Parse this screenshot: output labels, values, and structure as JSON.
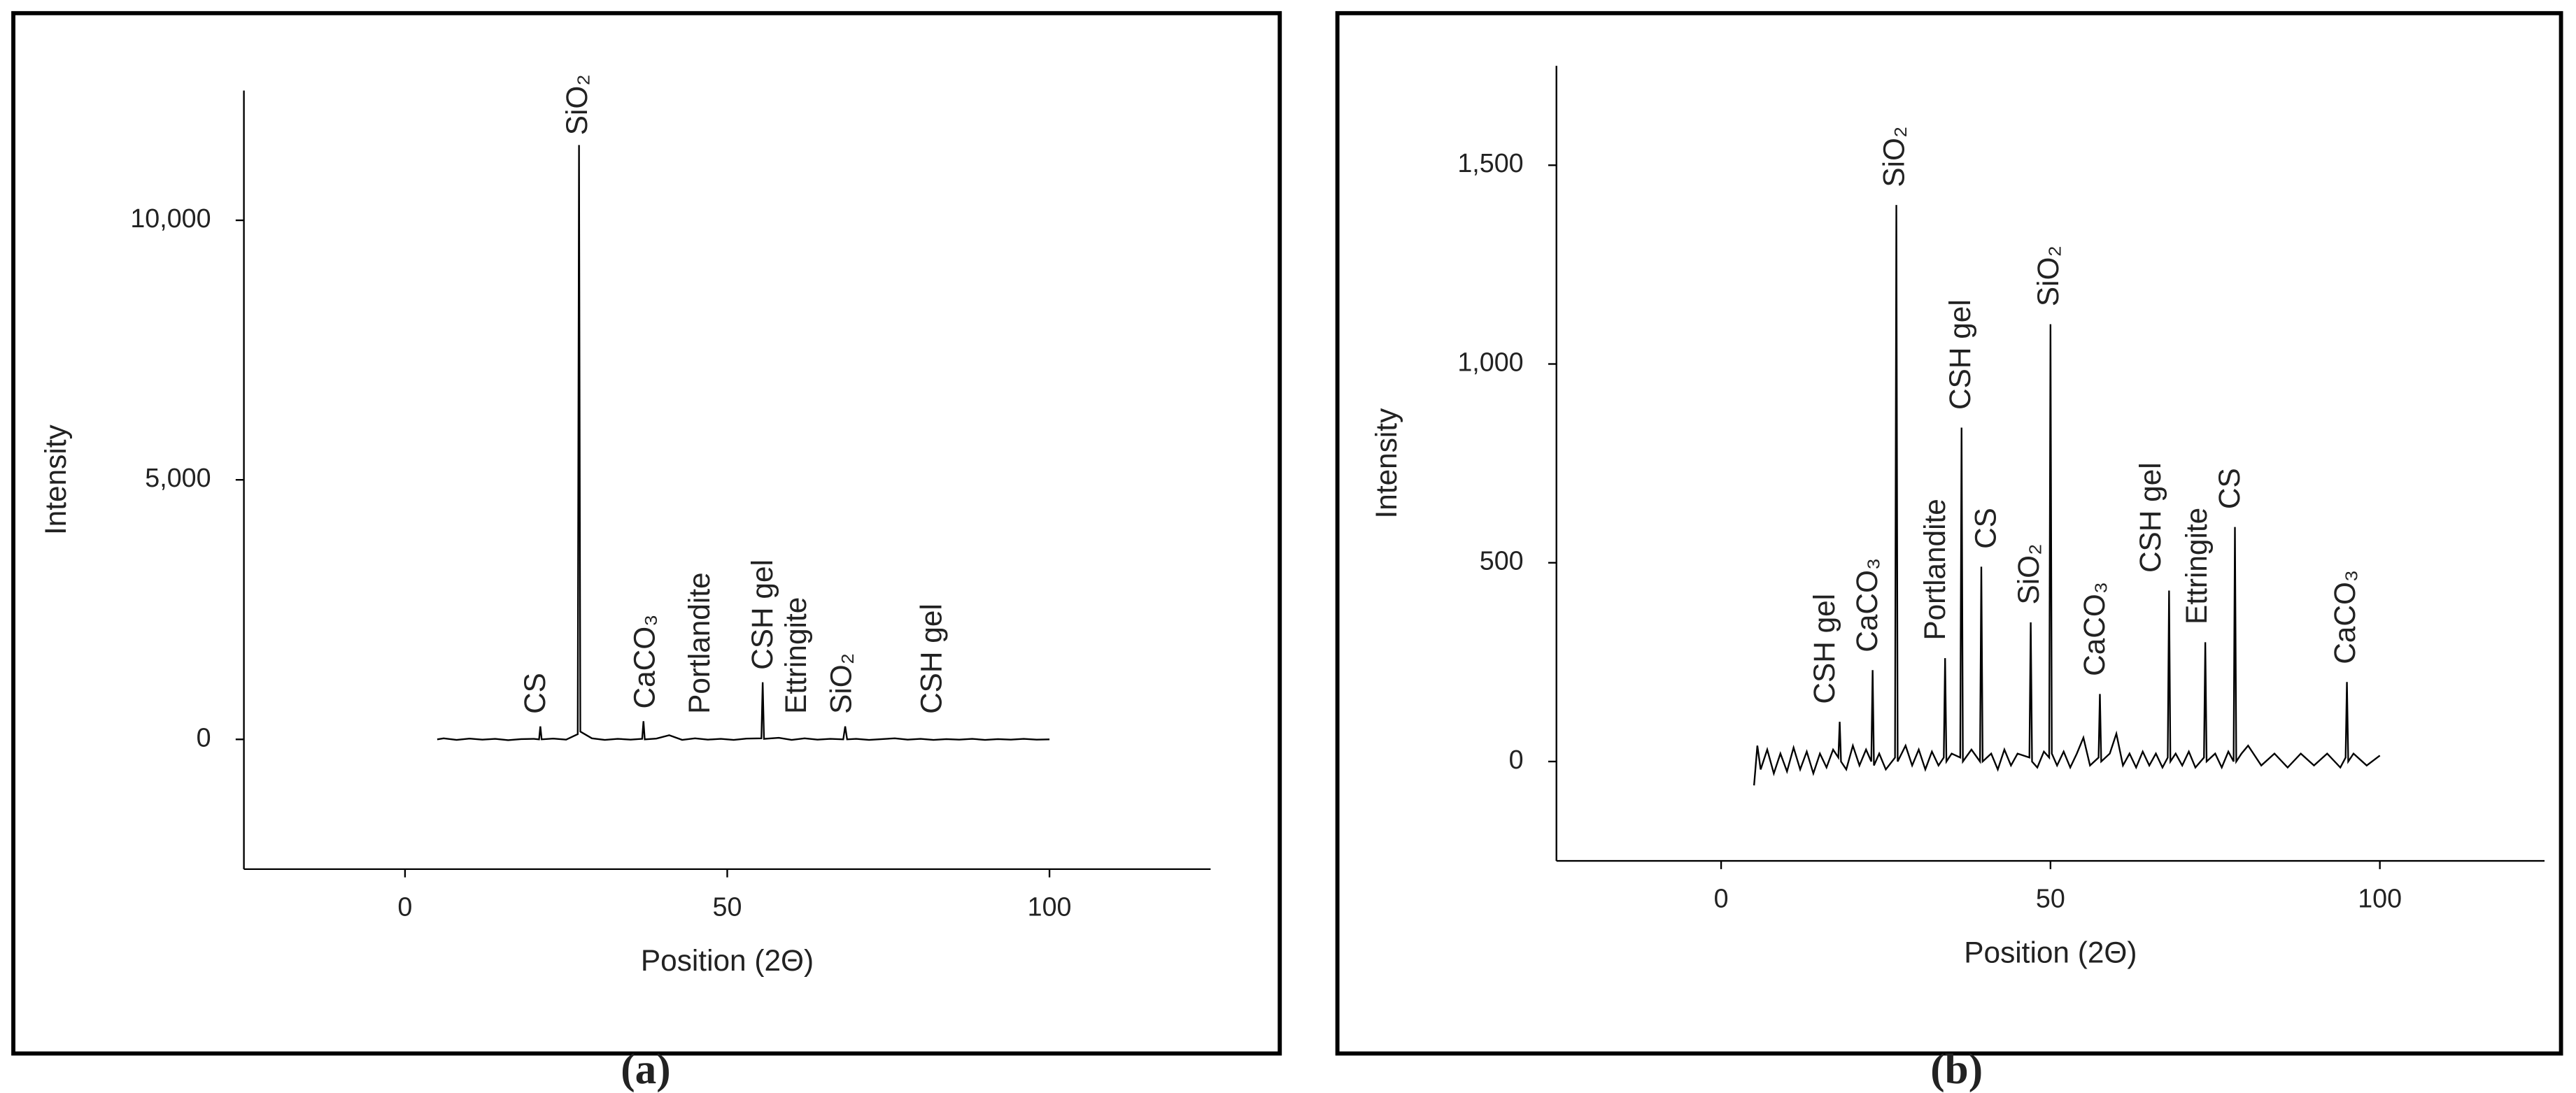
{
  "chart_data": [
    {
      "type": "line",
      "caption": "(a)",
      "x_label": "Position (2Θ)",
      "y_label": "Intensity",
      "color": "#000000",
      "xlim": [
        -25,
        125
      ],
      "xticks": [
        0,
        50,
        100
      ],
      "ylim": [
        -2500,
        12500
      ],
      "yticks": [
        0,
        {
          "value": 5000,
          "label": "5,000"
        },
        {
          "value": 10000,
          "label": "10,000"
        }
      ],
      "x": [
        5,
        6,
        8,
        10,
        12,
        14,
        16,
        18,
        20,
        20.8,
        21,
        21.2,
        23,
        25,
        26.8,
        27,
        27.2,
        29,
        31,
        33,
        35,
        36.8,
        37,
        37.2,
        39,
        41,
        43,
        45,
        47,
        49,
        51,
        53,
        55.3,
        55.5,
        55.7,
        58,
        60,
        62,
        64,
        66,
        68,
        68.3,
        68.6,
        70,
        72,
        74,
        76,
        78,
        80,
        82,
        84,
        86,
        88,
        90,
        92,
        94,
        96,
        98,
        100
      ],
      "values": [
        0,
        20,
        -10,
        15,
        -5,
        10,
        -15,
        5,
        10,
        0,
        250,
        0,
        15,
        -5,
        100,
        11450,
        150,
        20,
        -10,
        10,
        -5,
        10,
        350,
        0,
        15,
        80,
        -10,
        20,
        -5,
        10,
        -10,
        15,
        20,
        1100,
        10,
        30,
        -10,
        20,
        -5,
        10,
        0,
        250,
        0,
        10,
        -10,
        5,
        20,
        -5,
        10,
        -10,
        5,
        -5,
        10,
        -10,
        5,
        -5,
        10,
        -5,
        0
      ],
      "annotations": [
        {
          "text": "SiO₂",
          "x": 27,
          "y": 11450
        },
        {
          "text": "CS",
          "x": 20.5,
          "y": 300
        },
        {
          "text": "CaCO₃",
          "x": 37.5,
          "y": 400
        },
        {
          "text": "Portlandite",
          "x": 46,
          "y": 300
        },
        {
          "text": "CSH gel",
          "x": 55.8,
          "y": 1150
        },
        {
          "text": "Ettringite",
          "x": 61,
          "y": 300
        },
        {
          "text": "SiO₂",
          "x": 68,
          "y": 300
        },
        {
          "text": "CSH gel",
          "x": 82,
          "y": 300
        }
      ]
    },
    {
      "type": "line",
      "caption": "(b)",
      "x_label": "Position (2Θ)",
      "y_label": "Intensity",
      "color": "#000000",
      "xlim": [
        -25,
        125
      ],
      "xticks": [
        0,
        50,
        100
      ],
      "ylim": [
        -250,
        1750
      ],
      "yticks": [
        0,
        500,
        {
          "value": 1000,
          "label": "1,000"
        },
        {
          "value": 1500,
          "label": "1,500"
        }
      ],
      "x": [
        5,
        5.5,
        6,
        7,
        8,
        9,
        10,
        11,
        12,
        13,
        14,
        15,
        16,
        17,
        17.8,
        18,
        18.2,
        19,
        20,
        21,
        22,
        22.8,
        23,
        23.2,
        24,
        25,
        26.4,
        26.6,
        26.8,
        28,
        29,
        30,
        31,
        32,
        33,
        33.8,
        34,
        34.2,
        35,
        36.3,
        36.5,
        36.7,
        38,
        39.3,
        39.5,
        39.7,
        41,
        42,
        43,
        44,
        45,
        46.8,
        47,
        47.2,
        48,
        49,
        49.8,
        50,
        50.2,
        51,
        52,
        53,
        54,
        55,
        56,
        57.3,
        57.5,
        57.7,
        59,
        60,
        61,
        62,
        63,
        64,
        65,
        66,
        67,
        67.8,
        68,
        68.2,
        69,
        70,
        71,
        72,
        73.3,
        73.5,
        73.7,
        75,
        76,
        77,
        77.8,
        78,
        78.2,
        79,
        80,
        82,
        84,
        86,
        88,
        90,
        92,
        94,
        94.8,
        95,
        95.2,
        96,
        98,
        100
      ],
      "values": [
        -60,
        40,
        -20,
        30,
        -30,
        20,
        -25,
        35,
        -20,
        25,
        -30,
        20,
        -15,
        30,
        10,
        100,
        0,
        -20,
        40,
        -10,
        30,
        0,
        230,
        -10,
        20,
        -20,
        10,
        1400,
        0,
        40,
        -10,
        30,
        -20,
        25,
        -10,
        10,
        260,
        0,
        20,
        10,
        840,
        0,
        30,
        0,
        490,
        0,
        20,
        -20,
        30,
        -10,
        20,
        10,
        350,
        0,
        -15,
        25,
        10,
        1100,
        20,
        -10,
        25,
        -15,
        20,
        60,
        -10,
        10,
        170,
        0,
        20,
        70,
        -10,
        20,
        -15,
        25,
        -10,
        20,
        -15,
        10,
        430,
        0,
        20,
        -10,
        25,
        -15,
        10,
        300,
        0,
        20,
        -15,
        25,
        0,
        590,
        0,
        20,
        40,
        -10,
        20,
        -15,
        20,
        -10,
        20,
        -15,
        10,
        200,
        0,
        20,
        -10,
        15
      ],
      "annotations": [
        {
          "text": "CSH gel",
          "x": 16,
          "y": 120
        },
        {
          "text": "CaCO₃",
          "x": 22.5,
          "y": 250
        },
        {
          "text": "SiO₂",
          "x": 26.6,
          "y": 1420
        },
        {
          "text": "Portlandite",
          "x": 32.8,
          "y": 280
        },
        {
          "text": "CSH gel",
          "x": 36.6,
          "y": 860
        },
        {
          "text": "CS",
          "x": 40.5,
          "y": 510
        },
        {
          "text": "SiO₂",
          "x": 47,
          "y": 370
        },
        {
          "text": "SiO₂",
          "x": 50,
          "y": 1120
        },
        {
          "text": "CaCO₃",
          "x": 57,
          "y": 190
        },
        {
          "text": "CSH gel",
          "x": 65.5,
          "y": 450
        },
        {
          "text": "Ettringite",
          "x": 72.5,
          "y": 320
        },
        {
          "text": "CS",
          "x": 77.5,
          "y": 610
        },
        {
          "text": "CaCO₃",
          "x": 95,
          "y": 220
        }
      ]
    }
  ]
}
